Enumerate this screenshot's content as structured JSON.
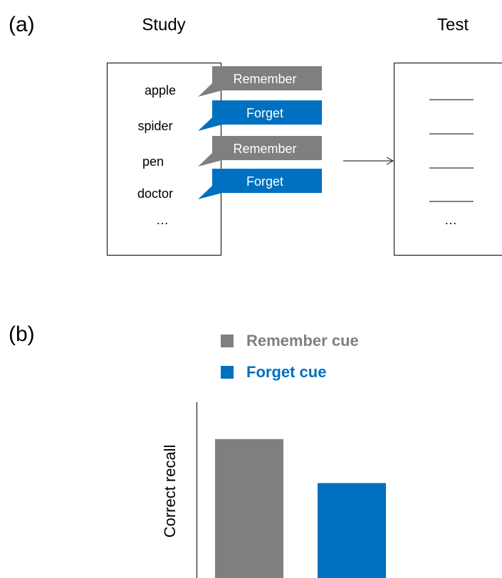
{
  "panel_a": {
    "label": "(a)",
    "study_heading": "Study",
    "test_heading": "Test",
    "study_words": [
      "apple",
      "spider",
      "pen",
      "doctor",
      "…"
    ],
    "cues": [
      "Remember",
      "Forget",
      "Remember",
      "Forget"
    ],
    "test_ellipsis": "…"
  },
  "chart_data": {
    "type": "bar",
    "label": "(b)",
    "y_label": "Correct recall",
    "series": [
      {
        "name": "Remember cue",
        "color": "#7f7f7f",
        "values": [
          79
        ]
      },
      {
        "name": "Forget cue",
        "color": "#0070c0",
        "values": [
          54
        ]
      }
    ],
    "ylim": [
      0,
      100
    ]
  }
}
